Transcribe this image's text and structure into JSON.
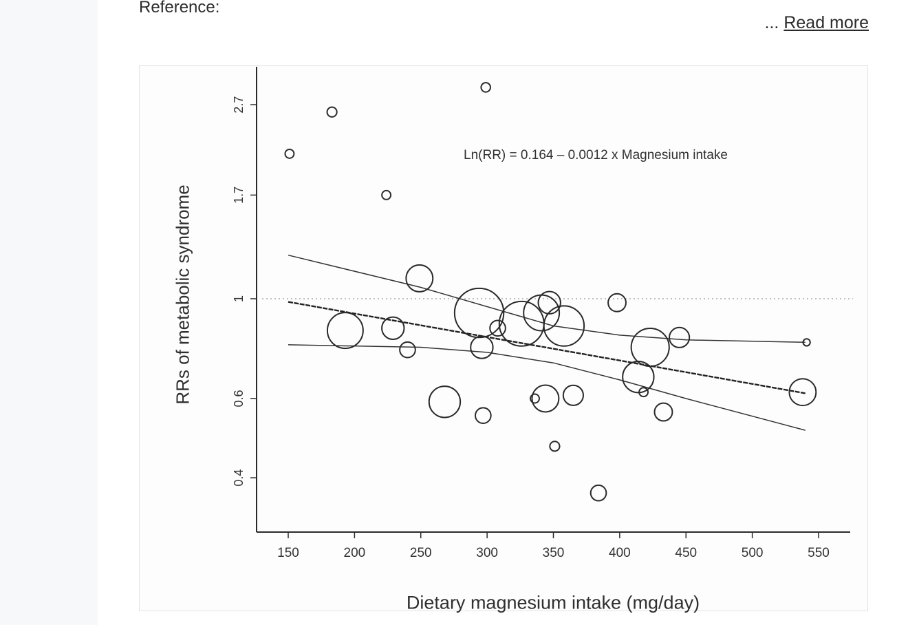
{
  "page": {
    "reference_label": "Reference:",
    "read_more_prefix": "...",
    "read_more_label": "Read more"
  },
  "chart_data": {
    "type": "scatter",
    "title": "",
    "xlabel": "Dietary magnesium intake (mg/day)",
    "ylabel": "RRs of metabolic syndrome",
    "annotation": "Ln(RR) = 0.164 – 0.0012 x Magnesium intake",
    "x_ticks": [
      150,
      200,
      250,
      300,
      350,
      400,
      450,
      500,
      550
    ],
    "y_ticks": [
      0.4,
      0.6,
      1,
      1.7,
      2.7
    ],
    "y_tick_labels": [
      "0.4",
      "0.6",
      "1",
      "1.7",
      "2.7"
    ],
    "y_scale": "log",
    "xlim": [
      130,
      565
    ],
    "ylim": [
      0.35,
      3.1
    ],
    "reference_line_y": 1,
    "regression": {
      "intercept": 0.164,
      "slope": -0.0012,
      "x_range": [
        150,
        540
      ]
    },
    "ci_upper": [
      [
        150,
        1.25
      ],
      [
        250,
        1.06
      ],
      [
        350,
        0.87
      ],
      [
        400,
        0.83
      ],
      [
        450,
        0.81
      ],
      [
        540,
        0.8
      ]
    ],
    "ci_lower": [
      [
        150,
        0.79
      ],
      [
        250,
        0.78
      ],
      [
        300,
        0.76
      ],
      [
        350,
        0.72
      ],
      [
        400,
        0.66
      ],
      [
        450,
        0.6
      ],
      [
        540,
        0.51
      ]
    ],
    "points": [
      {
        "x": 151,
        "y": 2.1,
        "size": 1
      },
      {
        "x": 183,
        "y": 2.6,
        "size": 1.2
      },
      {
        "x": 224,
        "y": 1.7,
        "size": 1
      },
      {
        "x": 299,
        "y": 2.95,
        "size": 1.1
      },
      {
        "x": 193,
        "y": 0.85,
        "size": 7
      },
      {
        "x": 229,
        "y": 0.86,
        "size": 4
      },
      {
        "x": 240,
        "y": 0.77,
        "size": 2.5
      },
      {
        "x": 249,
        "y": 1.11,
        "size": 5
      },
      {
        "x": 268,
        "y": 0.59,
        "size": 6
      },
      {
        "x": 296,
        "y": 0.78,
        "size": 4
      },
      {
        "x": 297,
        "y": 0.55,
        "size": 2.5
      },
      {
        "x": 294,
        "y": 0.93,
        "size": 10
      },
      {
        "x": 308,
        "y": 0.86,
        "size": 2.5
      },
      {
        "x": 326,
        "y": 0.88,
        "size": 9
      },
      {
        "x": 336,
        "y": 0.6,
        "size": 1
      },
      {
        "x": 341,
        "y": 0.93,
        "size": 7
      },
      {
        "x": 347,
        "y": 0.98,
        "size": 4
      },
      {
        "x": 344,
        "y": 0.6,
        "size": 5
      },
      {
        "x": 351,
        "y": 0.47,
        "size": 1.2
      },
      {
        "x": 358,
        "y": 0.87,
        "size": 8
      },
      {
        "x": 365,
        "y": 0.61,
        "size": 3.5
      },
      {
        "x": 384,
        "y": 0.37,
        "size": 2.5
      },
      {
        "x": 398,
        "y": 0.98,
        "size": 3
      },
      {
        "x": 414,
        "y": 0.67,
        "size": 6
      },
      {
        "x": 418,
        "y": 0.62,
        "size": 1
      },
      {
        "x": 423,
        "y": 0.78,
        "size": 7.5
      },
      {
        "x": 433,
        "y": 0.56,
        "size": 3
      },
      {
        "x": 445,
        "y": 0.82,
        "size": 3.5
      },
      {
        "x": 538,
        "y": 0.62,
        "size": 5
      },
      {
        "x": 541,
        "y": 0.8,
        "size": 0.6
      }
    ],
    "grid": false,
    "legend": "none"
  }
}
